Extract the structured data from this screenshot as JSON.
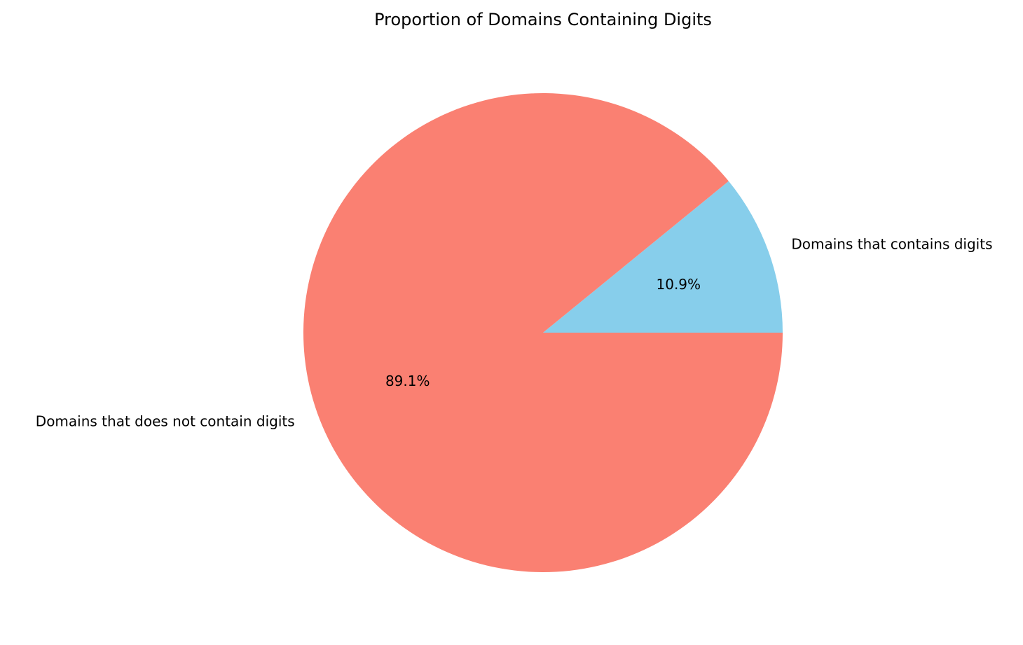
{
  "chart_data": {
    "type": "pie",
    "title": "Proportion of Domains Containing Digits",
    "slices": [
      {
        "label": "Domains that contains digits",
        "value": 10.9,
        "pct_label": "10.9%",
        "color": "#87ceeb"
      },
      {
        "label": "Domains that does not contain digits",
        "value": 89.1,
        "pct_label": "89.1%",
        "color": "#fa8072"
      }
    ],
    "start_angle_deg": 0,
    "direction": "counterclockwise"
  }
}
